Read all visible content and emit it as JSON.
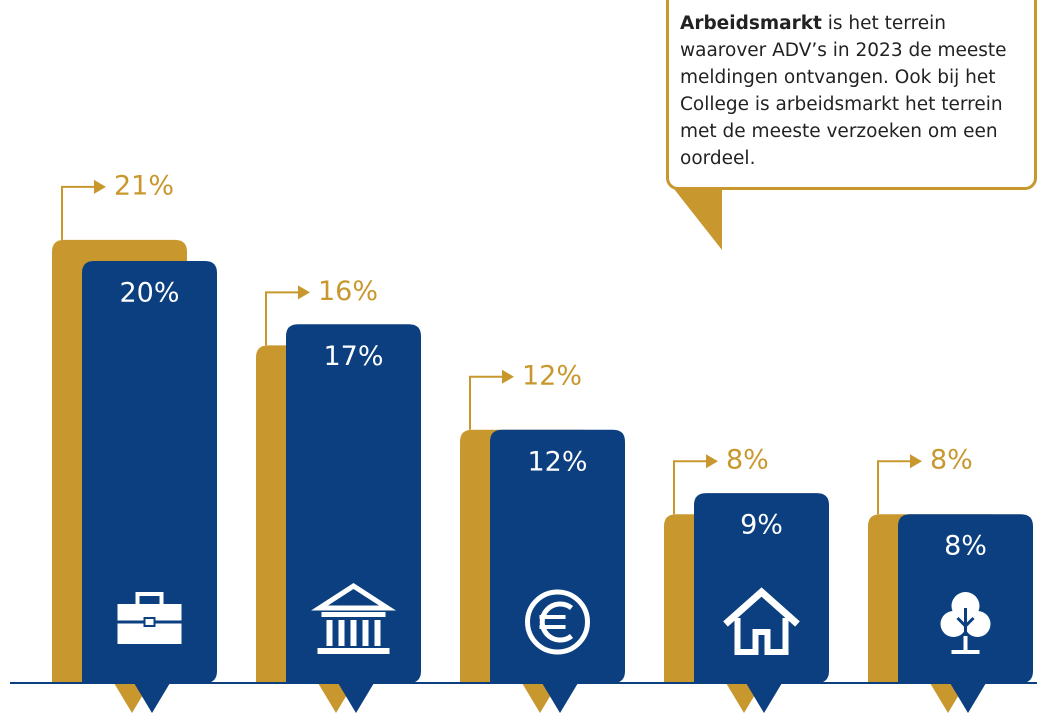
{
  "chart_data": {
    "type": "bar",
    "series": [
      {
        "color": "#c8982f",
        "values": [
          21,
          16,
          12,
          8,
          8
        ],
        "value_labels": [
          "21%",
          "16%",
          "12%",
          "8%",
          "8%"
        ]
      },
      {
        "color": "#0b3f80",
        "values": [
          20,
          17,
          12,
          9,
          8
        ],
        "value_labels": [
          "20%",
          "17%",
          "12%",
          "9%",
          "8%"
        ]
      }
    ],
    "annotation": {
      "bold": "Arbeidsmarkt",
      "text": "is het terrein waarover ADV’s in 2023 de meeste meldingen ontvangen. Ook bij het College is arbeidsmarkt het terrein met de meeste verzoeken om een oordeel."
    }
  }
}
